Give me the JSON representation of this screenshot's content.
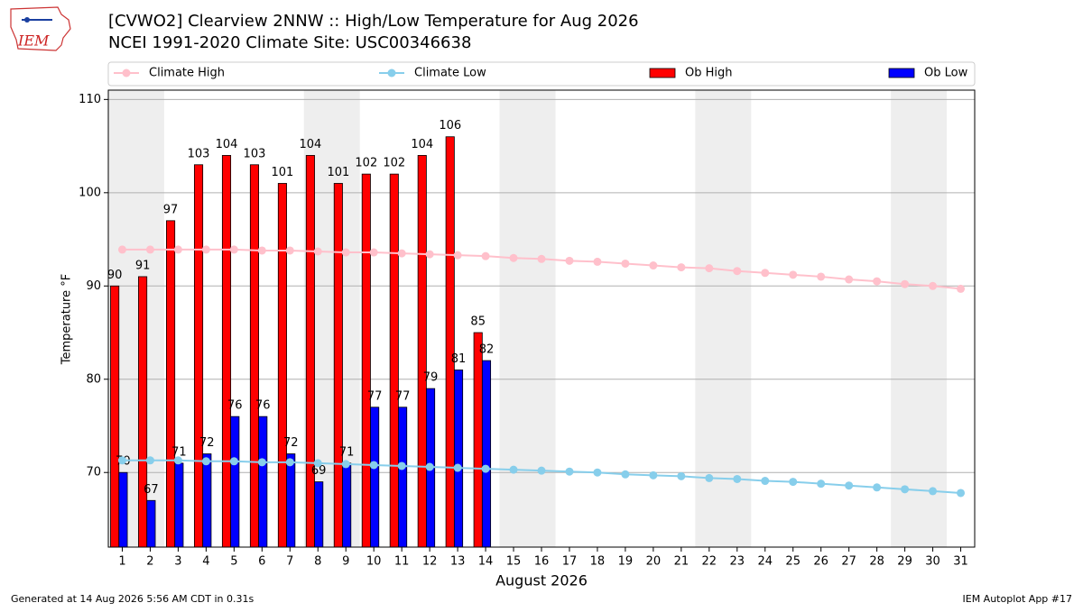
{
  "chart_data": {
    "type": "bar",
    "title": "[CVWO2] Clearview 2NNW :: High/Low Temperature for Aug 2026",
    "subtitle": "NCEI 1991-2020 Climate Site: USC00346638",
    "logo_text": "IEM",
    "xlabel": "August 2026",
    "ylabel": "Temperature °F",
    "footer_left": "Generated at 14 Aug 2026 5:56 AM CDT in 0.31s",
    "footer_right": "IEM Autoplot App #17",
    "x": [
      1,
      2,
      3,
      4,
      5,
      6,
      7,
      8,
      9,
      10,
      11,
      12,
      13,
      14,
      15,
      16,
      17,
      18,
      19,
      20,
      21,
      22,
      23,
      24,
      25,
      26,
      27,
      28,
      29,
      30,
      31
    ],
    "xlim": [
      0.5,
      31.5
    ],
    "xticks": [
      1,
      2,
      3,
      4,
      5,
      6,
      7,
      8,
      9,
      10,
      11,
      12,
      13,
      14,
      15,
      16,
      17,
      18,
      19,
      20,
      21,
      22,
      23,
      24,
      25,
      26,
      27,
      28,
      29,
      30,
      31
    ],
    "ylim": [
      62,
      111
    ],
    "yticks": [
      70,
      80,
      90,
      100,
      110
    ],
    "grid": true,
    "shaded_spans": [
      [
        0.5,
        2.5
      ],
      [
        7.5,
        9.5
      ],
      [
        14.5,
        16.5
      ],
      [
        21.5,
        23.5
      ],
      [
        28.5,
        30.5
      ]
    ],
    "shade_color": "#eeeeee",
    "series": [
      {
        "name": "Climate High",
        "type": "line",
        "color": "#ffc0cb",
        "values": [
          93.9,
          93.9,
          93.9,
          93.9,
          93.9,
          93.8,
          93.8,
          93.7,
          93.6,
          93.6,
          93.5,
          93.4,
          93.3,
          93.2,
          93.0,
          92.9,
          92.7,
          92.6,
          92.4,
          92.2,
          92.0,
          91.9,
          91.6,
          91.4,
          91.2,
          91.0,
          90.7,
          90.5,
          90.2,
          90.0,
          89.7
        ]
      },
      {
        "name": "Climate Low",
        "type": "line",
        "color": "#87ceeb",
        "values": [
          71.3,
          71.3,
          71.3,
          71.2,
          71.2,
          71.1,
          71.1,
          71.0,
          70.9,
          70.8,
          70.7,
          70.6,
          70.5,
          70.4,
          70.3,
          70.2,
          70.1,
          70.0,
          69.8,
          69.7,
          69.6,
          69.4,
          69.3,
          69.1,
          69.0,
          68.8,
          68.6,
          68.4,
          68.2,
          68.0,
          67.8
        ]
      },
      {
        "name": "Ob High",
        "type": "bar",
        "color": "#ff0000",
        "values": [
          90,
          91,
          97,
          103,
          104,
          103,
          101,
          104,
          101,
          102,
          102,
          104,
          106,
          85,
          null,
          null,
          null,
          null,
          null,
          null,
          null,
          null,
          null,
          null,
          null,
          null,
          null,
          null,
          null,
          null,
          null
        ]
      },
      {
        "name": "Ob Low",
        "type": "bar",
        "color": "#0000ff",
        "values": [
          70,
          67,
          71,
          72,
          76,
          76,
          72,
          69,
          71,
          77,
          77,
          79,
          81,
          82,
          null,
          null,
          null,
          null,
          null,
          null,
          null,
          null,
          null,
          null,
          null,
          null,
          null,
          null,
          null,
          null,
          null
        ]
      }
    ]
  }
}
